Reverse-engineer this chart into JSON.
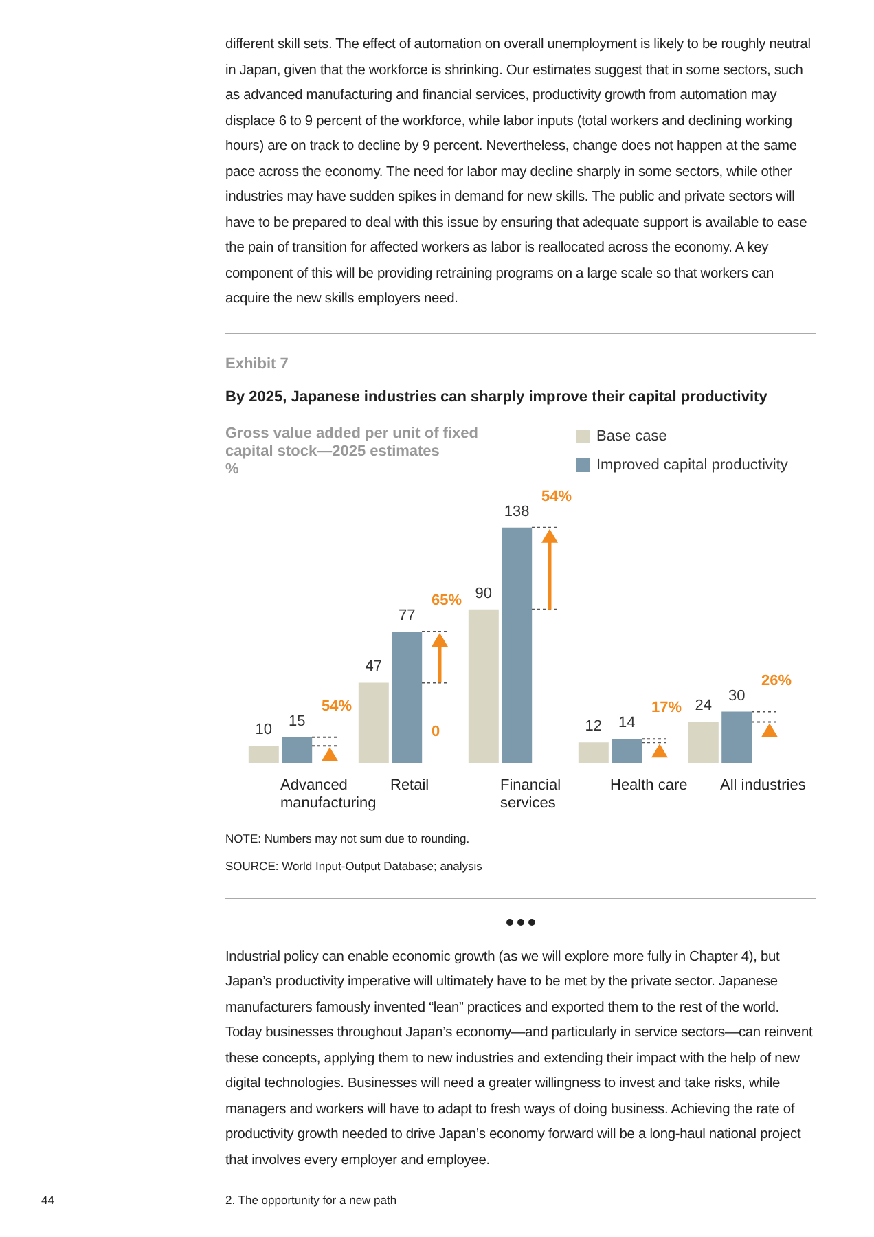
{
  "chart_data": {
    "type": "bar",
    "subtitle": "Exhibit 7",
    "title": "By 2025, Japanese industries can sharply improve their capital productivity",
    "ylabel": "Gross value added per unit of fixed capital stock—2025 estimates\n%",
    "categories": [
      "Advanced\nmanufacturing",
      "Retail",
      "Financial\nservices",
      "Health care",
      "All industries"
    ],
    "series": [
      {
        "name": "Base case",
        "color": "#d9d6c3",
        "values": [
          10,
          47,
          90,
          12,
          24
        ]
      },
      {
        "name": "Improved capital productivity",
        "color": "#7d9aac",
        "values": [
          15,
          77,
          138,
          14,
          30
        ]
      }
    ],
    "data_labels": true,
    "legend": "top right",
    "annotations": [
      "different skill sets. The effect of automation on overall unemployment is likely to be roughly neutral in Japan, given that the workforce is shrinking. Our estimates suggest that in some sectors, such as advanced manufacturing and financial services, productivity growth from automation may displace 6 to 9 percent of the workforce, while labor inputs (total workers and declining working hours) are on track to decline by 9 percent. Nevertheless, change does not happen at the same pace across the economy. The need for labor may decline sharply in some sectors, while other industries may have sudden spikes in demand for new skills. The public and private sectors will have to be prepared to deal with this issue by ensuring that adequate support is available to ease the pain of transition for affected workers as labor is reallocated across the economy. A key component of this will be providing retraining programs on a large scale so that workers can acquire the new skills employers need.",
      "NOTE: Numbers may not sum due to rounding.",
      "SOURCE: World Input-Output Database; analysis",
      "Industrial policy can enable economic growth (as we will explore more fully in Chapter 4), but Japan’s productivity imperative will ultimately have to be met by the private sector. Japanese manufacturers famously invented “lean” practices and exported them to the rest of the world. Today businesses throughout Japan’s economy—and particularly in service sectors—can reinvent these concepts, applying them to new industries and extending their impact with the help of new digital technologies. Businesses will need a greater willingness to invest and take risks, while managers and workers will have to adapt to fresh ways of doing business. Achieving the rate of productivity growth needed to drive Japan’s economy forward will be a long-haul national project that involves every employer and employee.",
      "44",
      "2. The opportunity for a new path",
      {
        "text": "54%",
        "x": "Advanced\nmanufacturing",
        "y": 15
      },
      {
        "text": "65%",
        "x": "Retail",
        "y": 77
      },
      {
        "text": "54%",
        "x": "Financial\nservices",
        "y": 138
      },
      {
        "text": "17%",
        "x": "Health care",
        "y": 14
      },
      {
        "text": "26%",
        "x": "All industries",
        "y": 30
      },
      {
        "text": "0",
        "x": "Retail",
        "y": 0
      }
    ]
  }
}
